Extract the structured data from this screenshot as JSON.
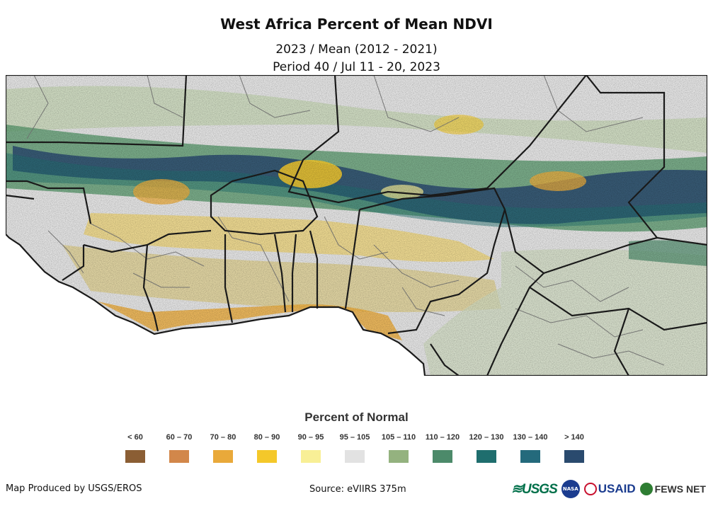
{
  "title": "West Africa Percent of Mean NDVI",
  "subtitle_1": "2023 / Mean (2012 - 2021)",
  "subtitle_2": "Period 40 / Jul 11 - 20, 2023",
  "legend": {
    "title": "Percent of Normal",
    "classes": [
      {
        "label": "< 60",
        "color": "#8b5e34"
      },
      {
        "label": "60 – 70",
        "color": "#d2874a"
      },
      {
        "label": "70 – 80",
        "color": "#e9a93a"
      },
      {
        "label": "80 – 90",
        "color": "#f4c82a"
      },
      {
        "label": "90 – 95",
        "color": "#f8ef96"
      },
      {
        "label": "95 – 105",
        "color": "#e2e2e2"
      },
      {
        "label": "105 – 110",
        "color": "#94b27f"
      },
      {
        "label": "110 – 120",
        "color": "#4c8a6a"
      },
      {
        "label": "120 – 130",
        "color": "#1f6e6e"
      },
      {
        "label": "130 – 140",
        "color": "#246a7c"
      },
      {
        "label": "> 140",
        "color": "#2a4a6e"
      }
    ]
  },
  "footer": {
    "credit": "Map Produced by USGS/EROS",
    "source": "Source: eVIIRS 375m"
  },
  "logos": {
    "usgs": "≋USGS",
    "nasa": "NASA",
    "usaid": "USAID",
    "fews": "FEWS NET"
  },
  "colors": {
    "ocean": "#ffffff",
    "background": "#e2e2e2",
    "border_country": "#1a1a1a",
    "border_admin": "#6b6b6b"
  }
}
